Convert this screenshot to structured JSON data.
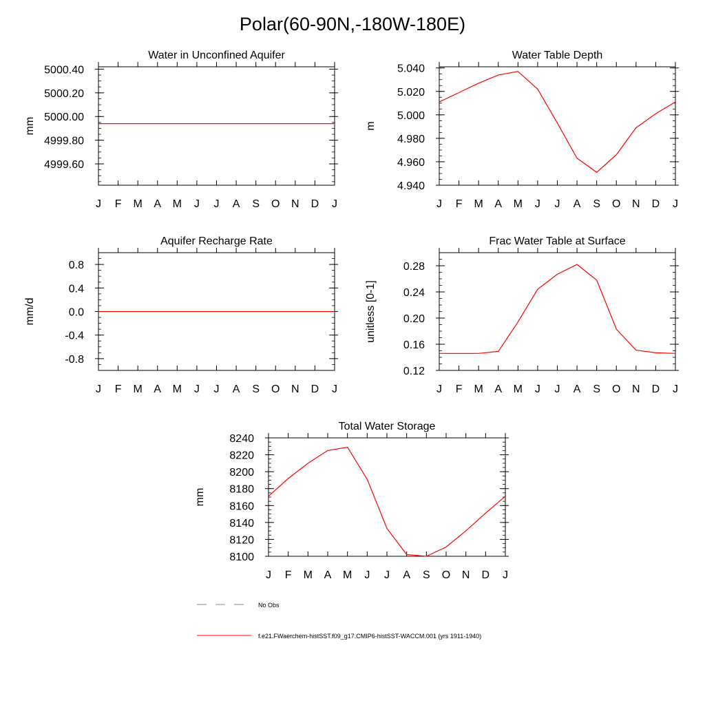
{
  "figure": {
    "title": "Polar(60-90N,-180W-180E)"
  },
  "chart_data": [
    {
      "type": "line",
      "title": "Water in Unconfined Aquifer",
      "ylabel": "mm",
      "x": [
        "J",
        "F",
        "M",
        "A",
        "M",
        "J",
        "J",
        "A",
        "S",
        "O",
        "N",
        "D",
        "J"
      ],
      "ylim": [
        4999.42,
        5000.42
      ],
      "yticks": [
        4999.6,
        4999.8,
        5000.0,
        5000.2,
        5000.4
      ],
      "ytick_labels": [
        "4999.60",
        "4999.80",
        "5000.00",
        "5000.20",
        "5000.40"
      ],
      "yminor": 0.05,
      "series": [
        {
          "color": "#ff0000",
          "values": [
            4999.94,
            4999.94,
            4999.94,
            4999.94,
            4999.94,
            4999.94,
            4999.94,
            4999.94,
            4999.94,
            4999.94,
            4999.94,
            4999.94,
            4999.94
          ]
        }
      ]
    },
    {
      "type": "line",
      "title": "Water Table Depth",
      "ylabel": "m",
      "x": [
        "J",
        "F",
        "M",
        "A",
        "M",
        "J",
        "J",
        "A",
        "S",
        "O",
        "N",
        "D",
        "J"
      ],
      "ylim": [
        4.94,
        5.041
      ],
      "yticks": [
        4.94,
        4.96,
        4.98,
        5.0,
        5.02,
        5.04
      ],
      "ytick_labels": [
        "4.940",
        "4.960",
        "4.980",
        "5.000",
        "5.020",
        "5.040"
      ],
      "yminor": 0.005,
      "series": [
        {
          "color": "#ff0000",
          "values": [
            5.011,
            5.019,
            5.027,
            5.034,
            5.037,
            5.022,
            4.993,
            4.963,
            4.951,
            4.966,
            4.989,
            5.001,
            5.011
          ]
        }
      ]
    },
    {
      "type": "line",
      "title": "Aquifer Recharge Rate",
      "ylabel": "mm/d",
      "x": [
        "J",
        "F",
        "M",
        "A",
        "M",
        "J",
        "J",
        "A",
        "S",
        "O",
        "N",
        "D",
        "J"
      ],
      "ylim": [
        -1.0,
        1.0
      ],
      "yticks": [
        -0.8,
        -0.4,
        0.0,
        0.4,
        0.8
      ],
      "ytick_labels": [
        "-0.8",
        "-0.4",
        "0.0",
        "0.4",
        "0.8"
      ],
      "yminor": 0.1,
      "series": [
        {
          "color": "#ff0000",
          "values": [
            0,
            0,
            0,
            0,
            0,
            0,
            0,
            0,
            0,
            0,
            0,
            0,
            0
          ]
        }
      ]
    },
    {
      "type": "line",
      "title": "Frac Water Table at Surface",
      "ylabel": "unitless [0-1]",
      "x": [
        "J",
        "F",
        "M",
        "A",
        "M",
        "J",
        "J",
        "A",
        "S",
        "O",
        "N",
        "D",
        "J"
      ],
      "ylim": [
        0.12,
        0.3
      ],
      "yticks": [
        0.12,
        0.16,
        0.2,
        0.24,
        0.28
      ],
      "ytick_labels": [
        "0.12",
        "0.16",
        "0.20",
        "0.24",
        "0.28"
      ],
      "yminor": 0.01,
      "series": [
        {
          "color": "#ff0000",
          "values": [
            0.146,
            0.146,
            0.146,
            0.149,
            0.194,
            0.244,
            0.267,
            0.282,
            0.258,
            0.183,
            0.151,
            0.147,
            0.146
          ]
        }
      ]
    },
    {
      "type": "line",
      "title": "Total Water Storage",
      "ylabel": "mm",
      "x": [
        "J",
        "F",
        "M",
        "A",
        "M",
        "J",
        "J",
        "A",
        "S",
        "O",
        "N",
        "D",
        "J"
      ],
      "ylim": [
        8100,
        8240
      ],
      "yticks": [
        8100,
        8120,
        8140,
        8160,
        8180,
        8200,
        8220,
        8240
      ],
      "ytick_labels": [
        "8100",
        "8120",
        "8140",
        "8160",
        "8180",
        "8200",
        "8220",
        "8240"
      ],
      "yminor": 5,
      "series": [
        {
          "color": "#ff0000",
          "values": [
            8171,
            8192,
            8210,
            8225,
            8229,
            8191,
            8133,
            8102,
            8100,
            8111,
            8130,
            8151,
            8171
          ]
        }
      ]
    }
  ],
  "legend": [
    {
      "label": "No Obs",
      "color": "#888888",
      "style": "dashed"
    },
    {
      "label": "f.e21.FWaerchem-histSST.f09_g17.CMIP6-histSST-WACCM.001 (yrs 1911-1940)",
      "color": "#ff0000",
      "style": "solid"
    }
  ]
}
